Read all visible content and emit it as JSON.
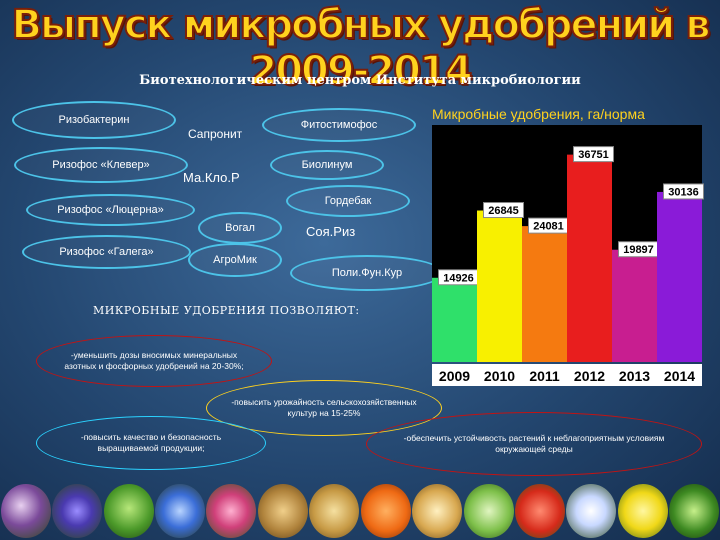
{
  "header": {
    "title": "Выпуск микробных удобрений в 2009-2014",
    "subtitle": "Биотехнологическим центром Института микробиологии"
  },
  "products": [
    {
      "label": "Ризобактерин"
    },
    {
      "label": "Сапронит"
    },
    {
      "label": "Фитостимофос"
    },
    {
      "label": "Ризофос «Клевер»"
    },
    {
      "label": "Ма.Кло.Р"
    },
    {
      "label": "Биолинум"
    },
    {
      "label": "Ризофос «Люцерна»"
    },
    {
      "label": "Гордебак"
    },
    {
      "label": "Вогал"
    },
    {
      "label": "Соя.Риз"
    },
    {
      "label": "Ризофос «Галега»"
    },
    {
      "label": "АгроМик"
    },
    {
      "label": "Поли.Фун.Кур"
    }
  ],
  "benefits": {
    "heading": "МИКРОБНЫЕ УДОБРЕНИЯ ПОЗВОЛЯЮТ:",
    "items": [
      "-уменьшить дозы вносимых минеральных азотных и фосфорных удобрений на 20-30%;",
      "-повысить урожайность сельскохозяйственных культур на 15-25%",
      "-повысить качество и безопасность выращиваемой продукции;",
      "-обеспечить устойчивость растений к неблагоприятным условиям окружающей среды"
    ]
  },
  "chart_data": {
    "type": "bar",
    "title": "Микробные удобрения, га/норма",
    "categories": [
      "2009",
      "2010",
      "2011",
      "2012",
      "2013",
      "2014"
    ],
    "values": [
      14926,
      26845,
      24081,
      36751,
      19897,
      30136
    ],
    "data_labels": [
      "14926",
      "26845",
      "24081",
      "36751",
      "19897",
      "30136"
    ],
    "ylim": [
      0,
      42000
    ],
    "grid": false,
    "colors": [
      "#2fe06a",
      "#f8f000",
      "#f57a10",
      "#e81e1e",
      "#c81e90",
      "#8a1bd8"
    ]
  },
  "photo_strip": {
    "items": [
      "lupine",
      "clover-blue",
      "peas",
      "flax-blue",
      "clover-red",
      "grain",
      "wheat",
      "carrots",
      "onions",
      "cabbage",
      "tomatoes",
      "flowers",
      "rapeseed-yellow",
      "cucumbers"
    ]
  }
}
